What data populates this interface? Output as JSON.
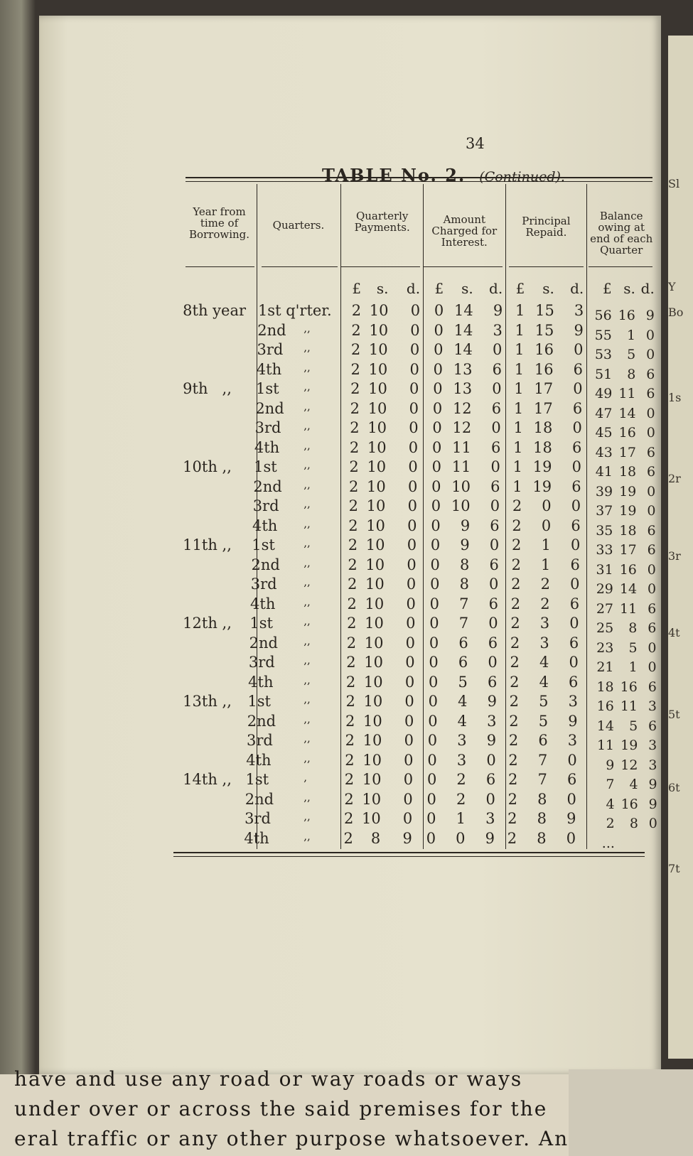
{
  "page_number": "34",
  "title": "TABLE No. 2.",
  "title_suffix": "—(Continued).",
  "headers": {
    "year": "Year from time of Borrowing.",
    "quarters": "Quarters.",
    "payments": "Quarterly Payments.",
    "interest": "Amount Charged for Interest.",
    "principal": "Principal Repaid.",
    "balance": "Balance owing at end of each Quarter"
  },
  "units": [
    "£",
    "s.",
    "d."
  ],
  "rows": [
    {
      "year": "8th year",
      "q": "1st q'rter.",
      "d": "",
      "p": [
        "2",
        "10",
        "0"
      ],
      "i": [
        "0",
        "14",
        "9"
      ],
      "r": [
        "1",
        "15",
        "3"
      ],
      "b": [
        "56",
        "16",
        "9"
      ]
    },
    {
      "year": "",
      "q": "2nd",
      "d": ",,",
      "p": [
        "2",
        "10",
        "0"
      ],
      "i": [
        "0",
        "14",
        "3"
      ],
      "r": [
        "1",
        "15",
        "9"
      ],
      "b": [
        "55",
        "1",
        "0"
      ]
    },
    {
      "year": "",
      "q": "3rd",
      "d": ",,",
      "p": [
        "2",
        "10",
        "0"
      ],
      "i": [
        "0",
        "14",
        "0"
      ],
      "r": [
        "1",
        "16",
        "0"
      ],
      "b": [
        "53",
        "5",
        "0"
      ]
    },
    {
      "year": "",
      "q": "4th",
      "d": ",,",
      "p": [
        "2",
        "10",
        "0"
      ],
      "i": [
        "0",
        "13",
        "6"
      ],
      "r": [
        "1",
        "16",
        "6"
      ],
      "b": [
        "51",
        "8",
        "6"
      ]
    },
    {
      "year": "9th   ,,",
      "q": "1st",
      "d": ",,",
      "p": [
        "2",
        "10",
        "0"
      ],
      "i": [
        "0",
        "13",
        "0"
      ],
      "r": [
        "1",
        "17",
        "0"
      ],
      "b": [
        "49",
        "11",
        "6"
      ]
    },
    {
      "year": "",
      "q": "2nd",
      "d": ",,",
      "p": [
        "2",
        "10",
        "0"
      ],
      "i": [
        "0",
        "12",
        "6"
      ],
      "r": [
        "1",
        "17",
        "6"
      ],
      "b": [
        "47",
        "14",
        "0"
      ]
    },
    {
      "year": "",
      "q": "3rd",
      "d": ",,",
      "p": [
        "2",
        "10",
        "0"
      ],
      "i": [
        "0",
        "12",
        "0"
      ],
      "r": [
        "1",
        "18",
        "0"
      ],
      "b": [
        "45",
        "16",
        "0"
      ]
    },
    {
      "year": "",
      "q": "4th",
      "d": ",,",
      "p": [
        "2",
        "10",
        "0"
      ],
      "i": [
        "0",
        "11",
        "6"
      ],
      "r": [
        "1",
        "18",
        "6"
      ],
      "b": [
        "43",
        "17",
        "6"
      ]
    },
    {
      "year": "10th ,,",
      "q": "1st",
      "d": ",,",
      "p": [
        "2",
        "10",
        "0"
      ],
      "i": [
        "0",
        "11",
        "0"
      ],
      "r": [
        "1",
        "19",
        "0"
      ],
      "b": [
        "41",
        "18",
        "6"
      ]
    },
    {
      "year": "",
      "q": "2nd",
      "d": ",,",
      "p": [
        "2",
        "10",
        "0"
      ],
      "i": [
        "0",
        "10",
        "6"
      ],
      "r": [
        "1",
        "19",
        "6"
      ],
      "b": [
        "39",
        "19",
        "0"
      ]
    },
    {
      "year": "",
      "q": "3rd",
      "d": ",,",
      "p": [
        "2",
        "10",
        "0"
      ],
      "i": [
        "0",
        "10",
        "0"
      ],
      "r": [
        "2",
        "0",
        "0"
      ],
      "b": [
        "37",
        "19",
        "0"
      ]
    },
    {
      "year": "",
      "q": "4th",
      "d": ",,",
      "p": [
        "2",
        "10",
        "0"
      ],
      "i": [
        "0",
        "9",
        "6"
      ],
      "r": [
        "2",
        "0",
        "6"
      ],
      "b": [
        "35",
        "18",
        "6"
      ]
    },
    {
      "year": "11th ,,",
      "q": "1st",
      "d": ",,",
      "p": [
        "2",
        "10",
        "0"
      ],
      "i": [
        "0",
        "9",
        "0"
      ],
      "r": [
        "2",
        "1",
        "0"
      ],
      "b": [
        "33",
        "17",
        "6"
      ]
    },
    {
      "year": "",
      "q": "2nd",
      "d": ",,",
      "p": [
        "2",
        "10",
        "0"
      ],
      "i": [
        "0",
        "8",
        "6"
      ],
      "r": [
        "2",
        "1",
        "6"
      ],
      "b": [
        "31",
        "16",
        "0"
      ]
    },
    {
      "year": "",
      "q": "3rd",
      "d": ",,",
      "p": [
        "2",
        "10",
        "0"
      ],
      "i": [
        "0",
        "8",
        "0"
      ],
      "r": [
        "2",
        "2",
        "0"
      ],
      "b": [
        "29",
        "14",
        "0"
      ]
    },
    {
      "year": "",
      "q": "4th",
      "d": ",,",
      "p": [
        "2",
        "10",
        "0"
      ],
      "i": [
        "0",
        "7",
        "6"
      ],
      "r": [
        "2",
        "2",
        "6"
      ],
      "b": [
        "27",
        "11",
        "6"
      ]
    },
    {
      "year": "12th ,,",
      "q": "1st",
      "d": ",,",
      "p": [
        "2",
        "10",
        "0"
      ],
      "i": [
        "0",
        "7",
        "0"
      ],
      "r": [
        "2",
        "3",
        "0"
      ],
      "b": [
        "25",
        "8",
        "6"
      ]
    },
    {
      "year": "",
      "q": "2nd",
      "d": ",,",
      "p": [
        "2",
        "10",
        "0"
      ],
      "i": [
        "0",
        "6",
        "6"
      ],
      "r": [
        "2",
        "3",
        "6"
      ],
      "b": [
        "23",
        "5",
        "0"
      ]
    },
    {
      "year": "",
      "q": "3rd",
      "d": ",,",
      "p": [
        "2",
        "10",
        "0"
      ],
      "i": [
        "0",
        "6",
        "0"
      ],
      "r": [
        "2",
        "4",
        "0"
      ],
      "b": [
        "21",
        "1",
        "0"
      ]
    },
    {
      "year": "",
      "q": "4th",
      "d": ",,",
      "p": [
        "2",
        "10",
        "0"
      ],
      "i": [
        "0",
        "5",
        "6"
      ],
      "r": [
        "2",
        "4",
        "6"
      ],
      "b": [
        "18",
        "16",
        "6"
      ]
    },
    {
      "year": "13th ,,",
      "q": "1st",
      "d": ",,",
      "p": [
        "2",
        "10",
        "0"
      ],
      "i": [
        "0",
        "4",
        "9"
      ],
      "r": [
        "2",
        "5",
        "3"
      ],
      "b": [
        "16",
        "11",
        "3"
      ]
    },
    {
      "year": "",
      "q": "2nd",
      "d": ",,",
      "p": [
        "2",
        "10",
        "0"
      ],
      "i": [
        "0",
        "4",
        "3"
      ],
      "r": [
        "2",
        "5",
        "9"
      ],
      "b": [
        "14",
        "5",
        "6"
      ]
    },
    {
      "year": "",
      "q": "3rd",
      "d": ",,",
      "p": [
        "2",
        "10",
        "0"
      ],
      "i": [
        "0",
        "3",
        "9"
      ],
      "r": [
        "2",
        "6",
        "3"
      ],
      "b": [
        "11",
        "19",
        "3"
      ]
    },
    {
      "year": "",
      "q": "4th",
      "d": ",,",
      "p": [
        "2",
        "10",
        "0"
      ],
      "i": [
        "0",
        "3",
        "0"
      ],
      "r": [
        "2",
        "7",
        "0"
      ],
      "b": [
        "9",
        "12",
        "3"
      ]
    },
    {
      "year": "14th ,,",
      "q": "1st",
      "d": ",",
      "p": [
        "2",
        "10",
        "0"
      ],
      "i": [
        "0",
        "2",
        "6"
      ],
      "r": [
        "2",
        "7",
        "6"
      ],
      "b": [
        "7",
        "4",
        "9"
      ]
    },
    {
      "year": "",
      "q": "2nd",
      "d": ",,",
      "p": [
        "2",
        "10",
        "0"
      ],
      "i": [
        "0",
        "2",
        "0"
      ],
      "r": [
        "2",
        "8",
        "0"
      ],
      "b": [
        "4",
        "16",
        "9"
      ]
    },
    {
      "year": "",
      "q": "3rd",
      "d": ",,",
      "p": [
        "2",
        "10",
        "0"
      ],
      "i": [
        "0",
        "1",
        "3"
      ],
      "r": [
        "2",
        "8",
        "9"
      ],
      "b": [
        "2",
        "8",
        "0"
      ]
    },
    {
      "year": "",
      "q": "4th",
      "d": ",,",
      "p": [
        "2",
        "8",
        "9"
      ],
      "i": [
        "0",
        "0",
        "9"
      ],
      "r": [
        "2",
        "8",
        "0"
      ],
      "b": [
        "...",
        "",
        ""
      ]
    }
  ],
  "facing_page_lines": [
    "have  and  use  any  road  or  way  roads  or  ways",
    "under  over  or  across  the  said  premises  for  the",
    "eral  traffic  or  any  other  purpose  whatsoever.  And"
  ],
  "right_page_fragments": [
    "Sl",
    "Y",
    "Bo",
    "1s",
    "2r",
    "3r",
    "4t",
    "5t",
    "6t",
    "7t"
  ]
}
